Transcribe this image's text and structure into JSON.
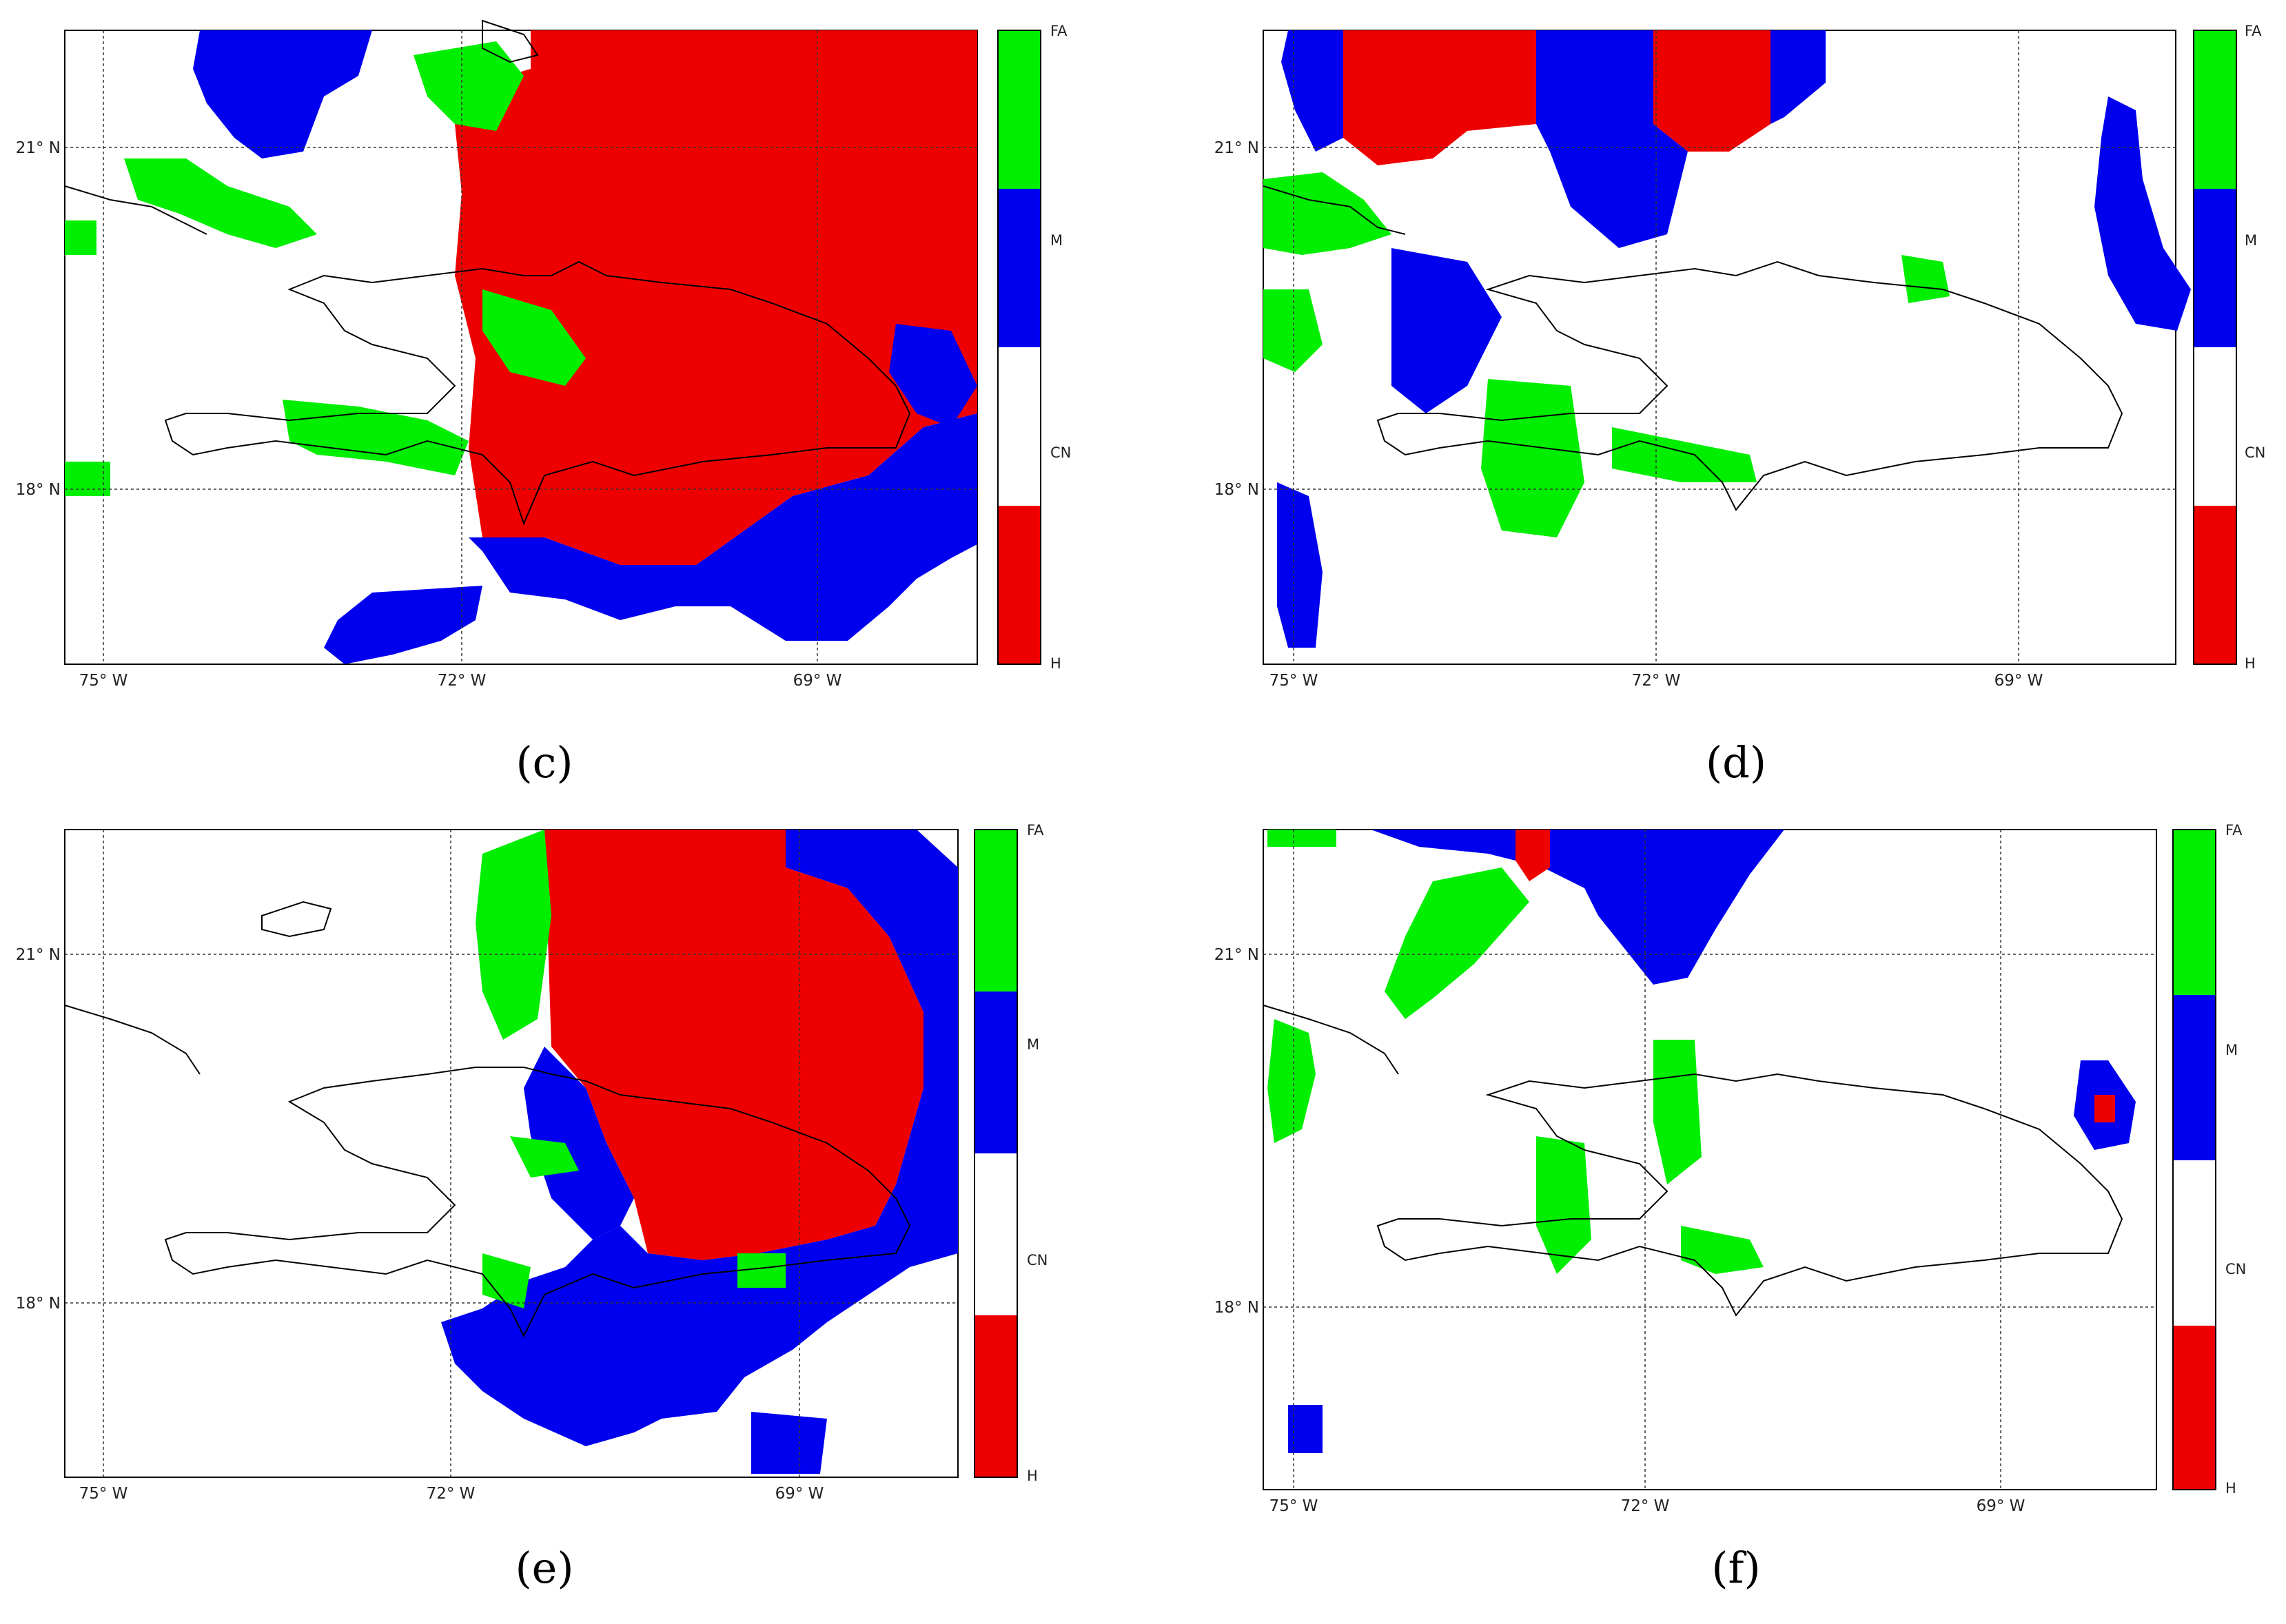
{
  "panels": [
    {
      "id": "c",
      "label": "(c)"
    },
    {
      "id": "d",
      "label": "(d)"
    },
    {
      "id": "e",
      "label": "(e)"
    },
    {
      "id": "f",
      "label": "(f)"
    }
  ],
  "axes": {
    "lon_ticks": [
      "75° W",
      "72° W",
      "69° W"
    ],
    "lat_ticks": [
      "21° N",
      "18° N"
    ]
  },
  "colorbar": {
    "categories": [
      {
        "label": "FA",
        "color": "#00ee00"
      },
      {
        "label": "M",
        "color": "#0000ee"
      },
      {
        "label": "CN",
        "color": "#ffffff"
      },
      {
        "label": "H",
        "color": "#ee0000"
      }
    ]
  }
}
